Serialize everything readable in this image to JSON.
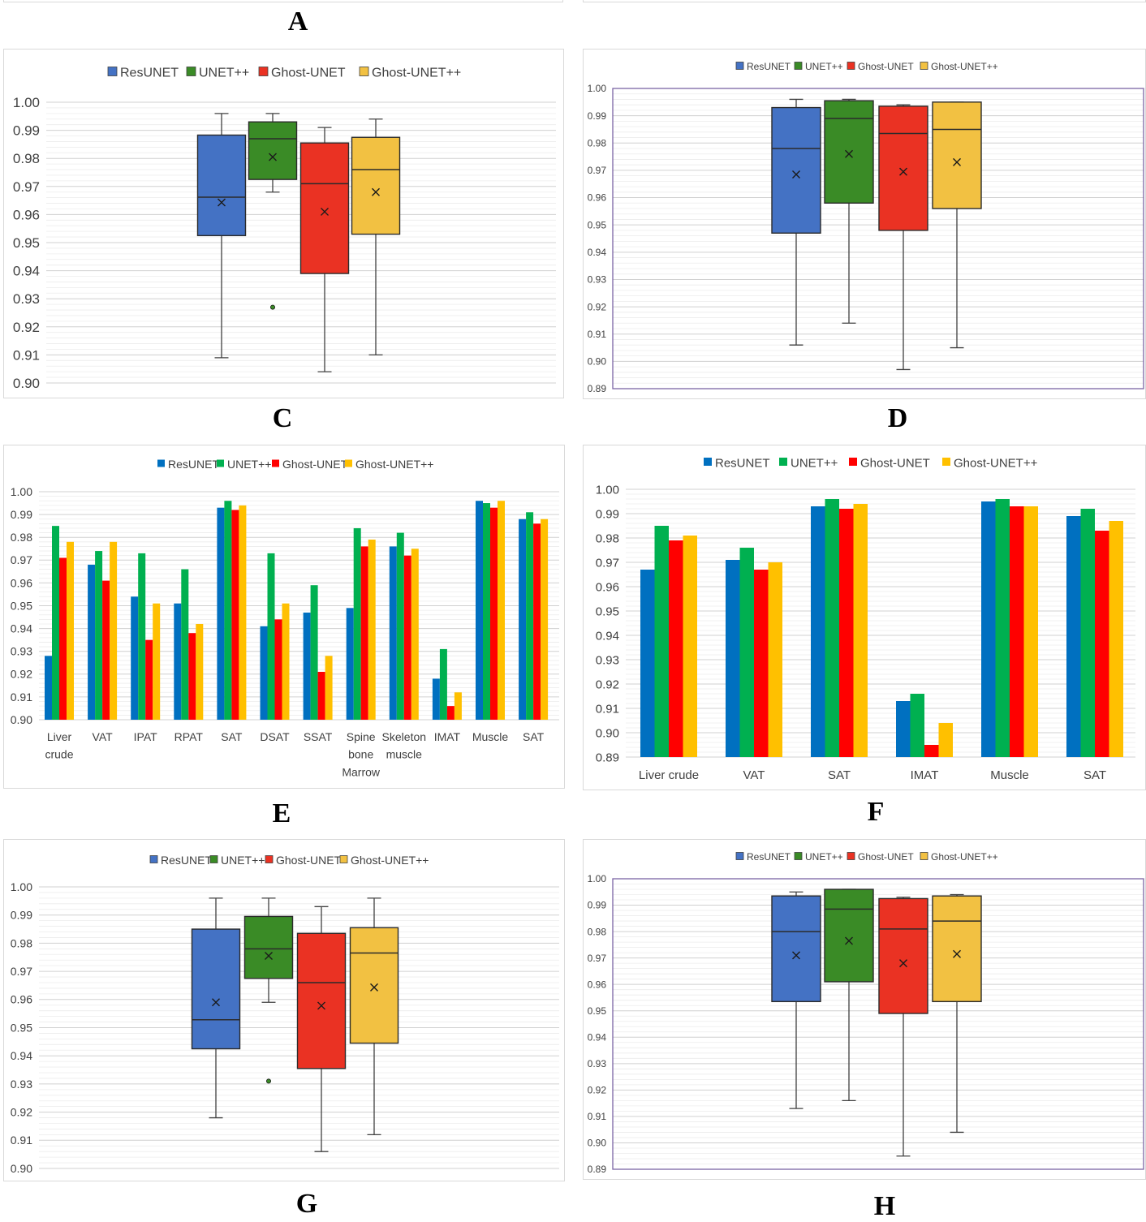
{
  "letters": [
    "A",
    "C",
    "D",
    "E",
    "F",
    "G",
    "H"
  ],
  "colors": {
    "box": [
      "#4472c4",
      "#3a8b26",
      "#ea3223",
      "#f2c142"
    ],
    "bar": [
      "#0070c0",
      "#00b050",
      "#ff0000",
      "#ffc000"
    ]
  },
  "chart_data": [
    {
      "type": "box",
      "legend": [
        "ResUNET",
        "UNET++",
        "Ghost-UNET",
        "Ghost-UNET++"
      ],
      "yticks": [
        "1.00",
        "0.99",
        "0.98",
        "0.97",
        "0.96",
        "0.95",
        "0.94",
        "0.93",
        "0.92",
        "0.91",
        "0.90"
      ],
      "ylim": [
        0.9,
        1.0
      ],
      "boxes": [
        {
          "min": 0.909,
          "q1": 0.9525,
          "median": 0.9662,
          "q3": 0.9883,
          "max": 0.996,
          "mean": 0.9643
        },
        {
          "min": 0.968,
          "q1": 0.9725,
          "median": 0.987,
          "q3": 0.993,
          "max": 0.996,
          "mean": 0.9805,
          "outliers": [
            0.927
          ]
        },
        {
          "min": 0.904,
          "q1": 0.939,
          "median": 0.971,
          "q3": 0.9855,
          "max": 0.991,
          "mean": 0.961
        },
        {
          "min": 0.91,
          "q1": 0.953,
          "median": 0.976,
          "q3": 0.9875,
          "max": 0.994,
          "mean": 0.968
        }
      ]
    },
    {
      "type": "box",
      "legend": [
        "ResUNET",
        "UNET++",
        "Ghost-UNET",
        "Ghost-UNET++"
      ],
      "yticks": [
        "1.00",
        "0.99",
        "0.98",
        "0.97",
        "0.96",
        "0.95",
        "0.94",
        "0.93",
        "0.92",
        "0.91",
        "0.90",
        "0.89"
      ],
      "ylim": [
        0.89,
        1.0
      ],
      "boxes": [
        {
          "min": 0.906,
          "q1": 0.947,
          "median": 0.978,
          "q3": 0.993,
          "max": 0.996,
          "mean": 0.9685
        },
        {
          "min": 0.914,
          "q1": 0.958,
          "median": 0.989,
          "q3": 0.9955,
          "max": 0.996,
          "mean": 0.976
        },
        {
          "min": 0.897,
          "q1": 0.948,
          "median": 0.9835,
          "q3": 0.9935,
          "max": 0.994,
          "mean": 0.9695
        },
        {
          "min": 0.905,
          "q1": 0.956,
          "median": 0.985,
          "q3": 0.995,
          "max": 0.995,
          "mean": 0.973
        }
      ]
    },
    {
      "type": "bar",
      "legend": [
        "ResUNET",
        "UNET++",
        "Ghost-UNET",
        "Ghost-UNET++"
      ],
      "yticks": [
        "1.00",
        "0.99",
        "0.98",
        "0.97",
        "0.96",
        "0.95",
        "0.94",
        "0.93",
        "0.92",
        "0.91",
        "0.90"
      ],
      "ylim": [
        0.9,
        1.0
      ],
      "categories": [
        "Liver\ncrude",
        "VAT",
        "IPAT",
        "RPAT",
        "SAT",
        "DSAT",
        "SSAT",
        "Spine\nbone\nMarrow",
        "Skeleton\nmuscle",
        "IMAT",
        "Muscle",
        "SAT"
      ],
      "series": [
        {
          "name": "ResUNET",
          "values": [
            0.928,
            0.968,
            0.954,
            0.951,
            0.993,
            0.941,
            0.947,
            0.949,
            0.976,
            0.918,
            0.996,
            0.988
          ]
        },
        {
          "name": "UNET++",
          "values": [
            0.985,
            0.974,
            0.973,
            0.966,
            0.996,
            0.973,
            0.959,
            0.984,
            0.982,
            0.931,
            0.995,
            0.991
          ]
        },
        {
          "name": "Ghost-UNET",
          "values": [
            0.971,
            0.961,
            0.935,
            0.938,
            0.992,
            0.944,
            0.921,
            0.976,
            0.972,
            0.906,
            0.993,
            0.986
          ]
        },
        {
          "name": "Ghost-UNET++",
          "values": [
            0.978,
            0.978,
            0.951,
            0.942,
            0.994,
            0.951,
            0.928,
            0.979,
            0.975,
            0.912,
            0.996,
            0.988
          ]
        }
      ]
    },
    {
      "type": "bar",
      "legend": [
        "ResUNET",
        "UNET++",
        "Ghost-UNET",
        "Ghost-UNET++"
      ],
      "yticks": [
        "1.00",
        "0.99",
        "0.98",
        "0.97",
        "0.96",
        "0.95",
        "0.94",
        "0.93",
        "0.92",
        "0.91",
        "0.90",
        "0.89"
      ],
      "ylim": [
        0.89,
        1.0
      ],
      "categories": [
        "Liver crude",
        "VAT",
        "SAT",
        "IMAT",
        "Muscle",
        "SAT"
      ],
      "series": [
        {
          "name": "ResUNET",
          "values": [
            0.967,
            0.971,
            0.993,
            0.913,
            0.995,
            0.989
          ]
        },
        {
          "name": "UNET++",
          "values": [
            0.985,
            0.976,
            0.996,
            0.916,
            0.996,
            0.992
          ]
        },
        {
          "name": "Ghost-UNET",
          "values": [
            0.979,
            0.967,
            0.992,
            0.895,
            0.993,
            0.983
          ]
        },
        {
          "name": "Ghost-UNET++",
          "values": [
            0.981,
            0.97,
            0.994,
            0.904,
            0.993,
            0.987
          ]
        }
      ]
    },
    {
      "type": "box",
      "legend": [
        "ResUNET",
        "UNET++",
        "Ghost-UNET",
        "Ghost-UNET++"
      ],
      "yticks": [
        "1.00",
        "0.99",
        "0.98",
        "0.97",
        "0.96",
        "0.95",
        "0.94",
        "0.93",
        "0.92",
        "0.91",
        "0.90"
      ],
      "ylim": [
        0.9,
        1.0
      ],
      "boxes": [
        {
          "min": 0.918,
          "q1": 0.9425,
          "median": 0.9528,
          "q3": 0.985,
          "max": 0.996,
          "mean": 0.959
        },
        {
          "min": 0.959,
          "q1": 0.9675,
          "median": 0.978,
          "q3": 0.9895,
          "max": 0.996,
          "mean": 0.9755,
          "outliers": [
            0.931
          ]
        },
        {
          "min": 0.906,
          "q1": 0.9355,
          "median": 0.966,
          "q3": 0.9835,
          "max": 0.993,
          "mean": 0.9578
        },
        {
          "min": 0.912,
          "q1": 0.9445,
          "median": 0.9765,
          "q3": 0.9855,
          "max": 0.996,
          "mean": 0.9643
        }
      ]
    },
    {
      "type": "box",
      "legend": [
        "ResUNET",
        "UNET++",
        "Ghost-UNET",
        "Ghost-UNET++"
      ],
      "yticks": [
        "1.00",
        "0.99",
        "0.98",
        "0.97",
        "0.96",
        "0.95",
        "0.94",
        "0.93",
        "0.92",
        "0.91",
        "0.90",
        "0.89"
      ],
      "ylim": [
        0.89,
        1.0
      ],
      "boxes": [
        {
          "min": 0.913,
          "q1": 0.9535,
          "median": 0.98,
          "q3": 0.9935,
          "max": 0.995,
          "mean": 0.971
        },
        {
          "min": 0.916,
          "q1": 0.961,
          "median": 0.9885,
          "q3": 0.996,
          "max": 0.996,
          "mean": 0.9765
        },
        {
          "min": 0.895,
          "q1": 0.949,
          "median": 0.981,
          "q3": 0.9925,
          "max": 0.993,
          "mean": 0.968
        },
        {
          "min": 0.904,
          "q1": 0.9535,
          "median": 0.984,
          "q3": 0.9935,
          "max": 0.994,
          "mean": 0.9715
        }
      ]
    }
  ]
}
